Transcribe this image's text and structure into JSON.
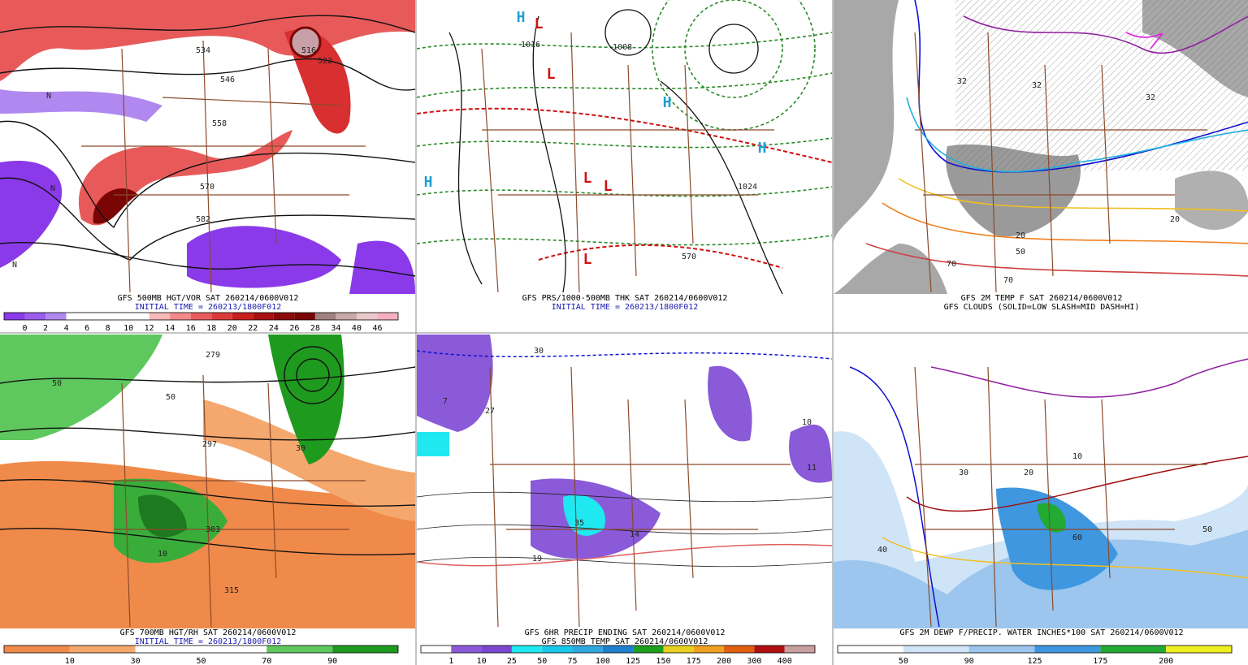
{
  "panels": [
    {
      "caption": [
        "GFS 500MB HGT/VOR SAT 260214/0600V012",
        "INITIAL TIME = 260213/1800F012"
      ],
      "caption_colors": [
        "#000000",
        "#1a1ab0"
      ],
      "map_labels": [
        "534",
        "546",
        "558",
        "570",
        "582",
        "516",
        "522",
        "N",
        "N",
        "N"
      ],
      "colorbar": {
        "labels": [
          "0",
          "2",
          "4",
          "6",
          "8",
          "10",
          "12",
          "14",
          "16",
          "18",
          "20",
          "22",
          "24",
          "26",
          "28",
          "34",
          "40",
          "46"
        ],
        "colors": [
          "#8a3ae8",
          "#9a5cec",
          "#b088f0",
          "#ffffff",
          "#ffffff",
          "#ffffff",
          "#ffffff",
          "#f6b8b8",
          "#f28a8a",
          "#ea5c5c",
          "#dc3a3a",
          "#c81e1e",
          "#a80f0f",
          "#8a0a0a",
          "#7a0505",
          "#a08080",
          "#c8a8a8",
          "#e8c8c8",
          "#f5b0c0"
        ]
      }
    },
    {
      "caption": [
        "GFS PRS/1000-500MB THK SAT 260214/0600V012",
        "INITIAL TIME = 260213/1800F012"
      ],
      "caption_colors": [
        "#000000",
        "#1a1ab0"
      ],
      "map_labels": [
        "L",
        "L",
        "L",
        "L",
        "L",
        "H",
        "H",
        "H",
        "H",
        "1016",
        "1008",
        "1024",
        "570"
      ]
    },
    {
      "caption": [
        "GFS 2M TEMP F SAT 260214/0600V012",
        "GFS CLOUDS (SOLID=LOW SLASH=MID DASH=HI)"
      ],
      "caption_colors": [
        "#000000",
        "#000000"
      ],
      "map_labels": [
        "32",
        "32",
        "32",
        "20",
        "20",
        "70",
        "70",
        "50"
      ]
    },
    {
      "caption": [
        "GFS 700MB HGT/RH SAT 260214/0600V012",
        "INITIAL TIME = 260213/1800F012"
      ],
      "caption_colors": [
        "#000000",
        "#1a1ab0"
      ],
      "map_labels": [
        "279",
        "297",
        "303",
        "315",
        "50",
        "50",
        "10",
        "30"
      ],
      "colorbar": {
        "labels": [
          "10",
          "30",
          "50",
          "70",
          "90"
        ],
        "colors": [
          "#f08a4a",
          "#f5a86e",
          "#ffffff",
          "#ffffff",
          "#5ec85e",
          "#1e9a1e"
        ]
      }
    },
    {
      "caption": [
        "GFS 6HR PRECIP ENDING SAT 260214/0600V012",
        "GFS 850MB TEMP SAT 260214/0600V012"
      ],
      "caption_colors": [
        "#000000",
        "#000000"
      ],
      "map_labels": [
        "7",
        "27",
        "35",
        "19",
        "14",
        "11",
        "10",
        "30"
      ],
      "colorbar": {
        "labels": [
          "1",
          "10",
          "25",
          "50",
          "75",
          "100",
          "125",
          "150",
          "175",
          "200",
          "300",
          "400"
        ],
        "colors": [
          "#ffffff",
          "#8a5ad8",
          "#7a48d0",
          "#20e8f0",
          "#18c8e8",
          "#30a8e0",
          "#2080d0",
          "#1ea01e",
          "#e8d020",
          "#f0a020",
          "#e06010",
          "#b01010",
          "#c8a0a0"
        ]
      }
    },
    {
      "caption": [
        "GFS 2M DEWP F/PRECIP. WATER INCHES*100 SAT 260214/0600V012"
      ],
      "caption_colors": [
        "#000000"
      ],
      "map_labels": [
        "30",
        "20",
        "10",
        "60",
        "50",
        "40"
      ],
      "colorbar": {
        "labels": [
          "50",
          "90",
          "125",
          "175",
          "200"
        ],
        "colors": [
          "#ffffff",
          "#cfe4f7",
          "#9cc6ee",
          "#3f97e0",
          "#22aa33",
          "#eeee22"
        ]
      }
    }
  ]
}
